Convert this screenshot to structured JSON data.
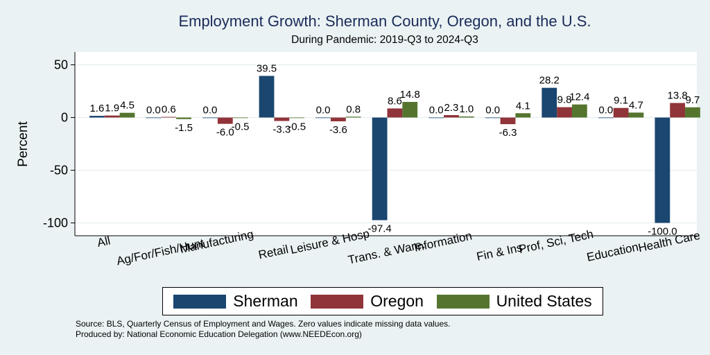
{
  "chart_data": {
    "type": "bar",
    "title": "Employment Growth: Sherman County, Oregon, and the U.S.",
    "subtitle": "During Pandemic: 2019-Q3 to 2024-Q3",
    "xlabel": "",
    "ylabel": "Percent",
    "ylim": [
      -105,
      60
    ],
    "yticks": [
      50,
      0,
      -50,
      -100
    ],
    "grid": true,
    "legend_position": "bottom",
    "categories": [
      "All",
      "Ag/For/Fish/Hunt",
      "Manufacturing",
      "Retail",
      "Leisure & Hosp",
      "Trans. & Ware.",
      "Information",
      "Fin & Ins",
      "Prof, Sci, Tech",
      "Education",
      "Health Care"
    ],
    "series": [
      {
        "name": "Sherman",
        "color": "#1a4670",
        "values": [
          1.6,
          0.0,
          0.0,
          39.5,
          0.0,
          -97.4,
          0.0,
          0.0,
          28.2,
          0.0,
          -100.0
        ]
      },
      {
        "name": "Oregon",
        "color": "#903439",
        "values": [
          1.9,
          0.6,
          -6.0,
          -3.3,
          -3.6,
          8.6,
          2.3,
          -6.3,
          9.8,
          9.1,
          13.8
        ]
      },
      {
        "name": "United States",
        "color": "#55752f",
        "values": [
          4.5,
          -1.5,
          -0.5,
          -0.5,
          0.8,
          14.8,
          1.0,
          4.1,
          12.4,
          4.7,
          9.7
        ]
      }
    ]
  },
  "footer": {
    "source": "Source: BLS, Quarterly Census of Employment and Wages. Zero values indicate missing data values.",
    "producer": "Produced by: National Economic Education Delegation (www.NEEDEcon.org)"
  }
}
